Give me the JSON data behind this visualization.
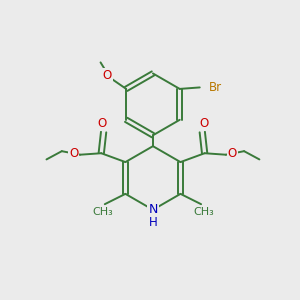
{
  "background_color": "#ebebeb",
  "bond_color": "#3a7a3a",
  "bond_width": 1.4,
  "atom_colors": {
    "O": "#cc0000",
    "N": "#0000bb",
    "Br": "#b87800",
    "C": "#3a7a3a",
    "H": "#3a7a3a"
  },
  "font_size": 8.5
}
